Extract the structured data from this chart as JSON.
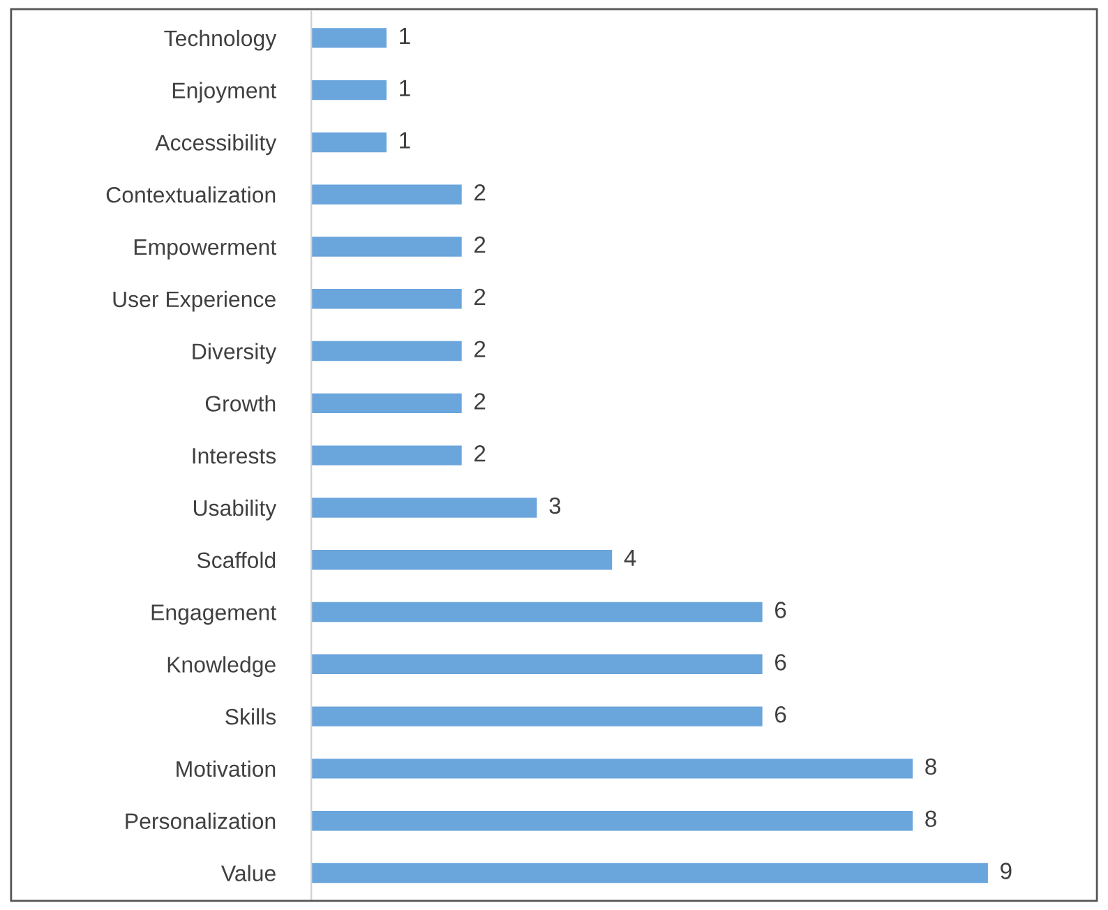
{
  "chart_data": {
    "type": "bar",
    "orientation": "horizontal",
    "categories": [
      "Technology",
      "Enjoyment",
      "Accessibility",
      "Contextualization",
      "Empowerment",
      "User Experience",
      "Diversity",
      "Growth",
      "Interests",
      "Usability",
      "Scaffold",
      "Engagement",
      "Knowledge",
      "Skills",
      "Motivation",
      "Personalization",
      "Value"
    ],
    "values": [
      1,
      1,
      1,
      2,
      2,
      2,
      2,
      2,
      2,
      3,
      4,
      6,
      6,
      6,
      8,
      8,
      9
    ],
    "color": "#6aa5dc",
    "data_labels": true,
    "tick_labels": "y",
    "grid": false,
    "legend": false
  }
}
